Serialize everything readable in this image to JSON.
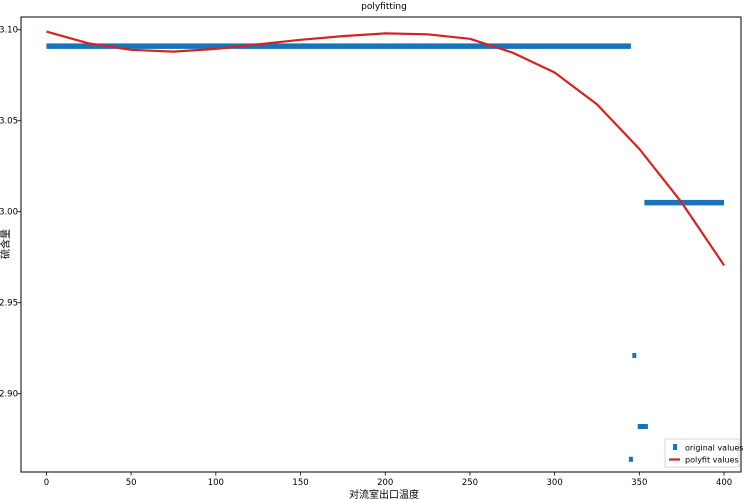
{
  "chart_data": {
    "type": "scatter",
    "title": "polyfitting",
    "xlabel": "对流室出口温度",
    "ylabel": "硫含量",
    "xlim": [
      -15,
      410
    ],
    "ylim": [
      2.857,
      3.107
    ],
    "x_ticks": [
      0,
      50,
      100,
      150,
      200,
      250,
      300,
      350,
      400
    ],
    "y_ticks": [
      2.9,
      2.95,
      3.0,
      3.05,
      3.1
    ],
    "y_tick_labels": [
      "2.90",
      "2.95",
      "3.00",
      "3.05",
      "3.10"
    ],
    "grid": false,
    "legend_position": "bottom-right",
    "colors": {
      "original": "#1874b8",
      "polyfit": "#d62222"
    },
    "series": [
      {
        "name": "original values",
        "kind": "segments",
        "segments": [
          {
            "x0": 0,
            "x1": 345,
            "y": 3.091
          },
          {
            "x0": 353,
            "x1": 400,
            "y": 3.005
          },
          {
            "x0": 347,
            "x1": 347,
            "y": 2.921
          },
          {
            "x0": 349,
            "x1": 355,
            "y": 2.882
          },
          {
            "x0": 345,
            "x1": 345,
            "y": 2.864
          }
        ]
      },
      {
        "name": "polyfit values",
        "kind": "line",
        "x": [
          0,
          25,
          50,
          75,
          100,
          125,
          150,
          175,
          200,
          225,
          250,
          275,
          300,
          325,
          350,
          375,
          400
        ],
        "y": [
          3.099,
          3.0925,
          3.089,
          3.088,
          3.0895,
          3.092,
          3.0945,
          3.0965,
          3.098,
          3.0975,
          3.095,
          3.0875,
          3.0765,
          3.059,
          3.0345,
          3.005,
          2.9705
        ]
      }
    ]
  }
}
